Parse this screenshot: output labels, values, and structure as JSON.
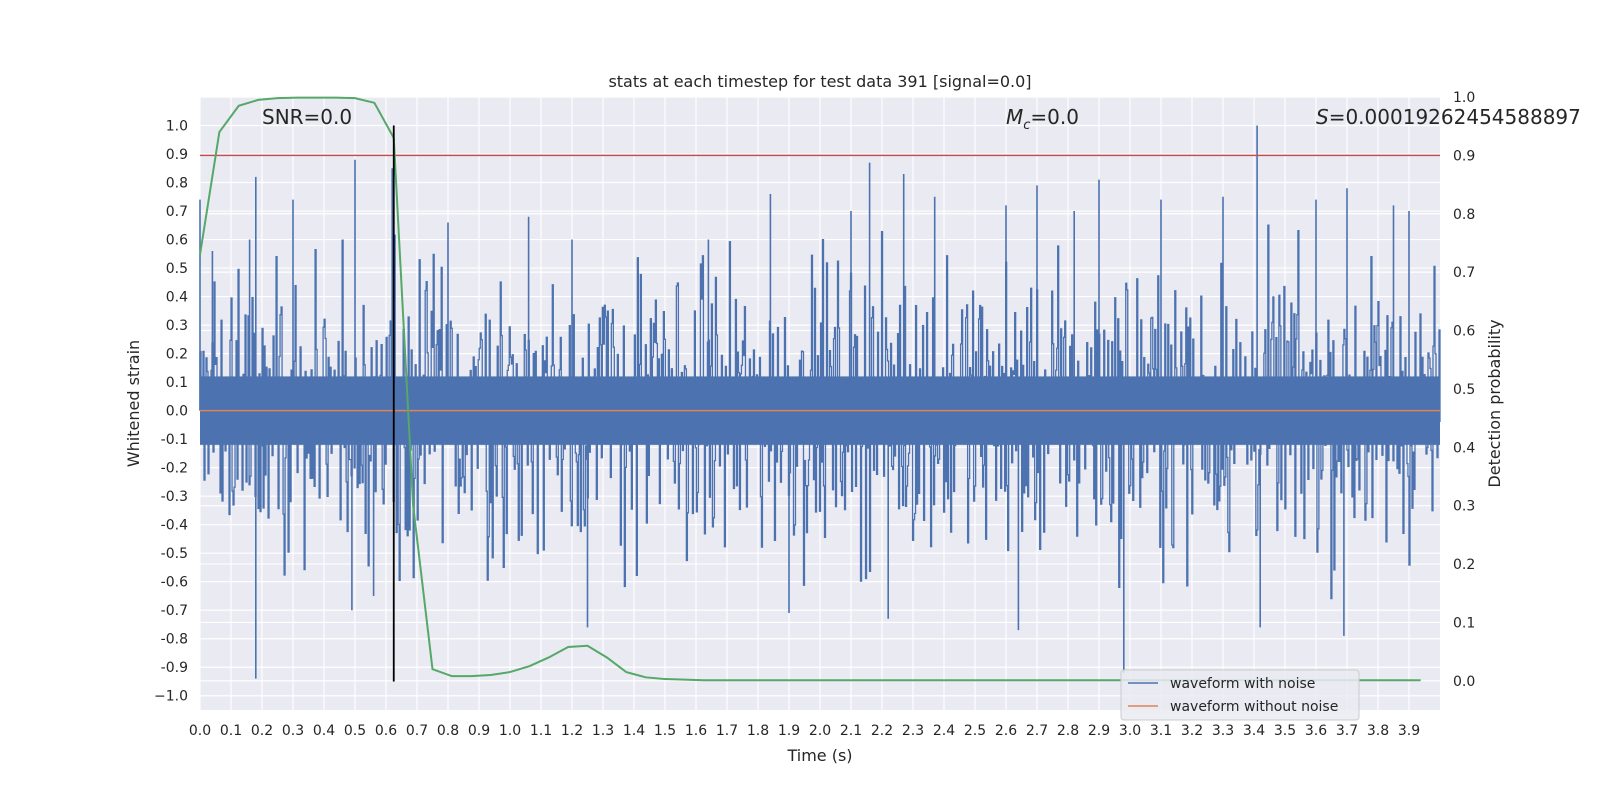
{
  "chart_data": {
    "type": "line",
    "title": "stats at each timestep for test data 391 [signal=0.0]",
    "xlabel": "Time (s)",
    "ylabel": "Whitened strain",
    "y2label": "Detection probability",
    "xlim": [
      0.0,
      4.0
    ],
    "ylim": [
      -1.05,
      1.1
    ],
    "y2lim": [
      -0.05,
      1.0
    ],
    "xticks": [
      "0.0",
      "0.1",
      "0.2",
      "0.3",
      "0.4",
      "0.5",
      "0.6",
      "0.7",
      "0.8",
      "0.9",
      "1.0",
      "1.1",
      "1.2",
      "1.3",
      "1.4",
      "1.5",
      "1.6",
      "1.7",
      "1.8",
      "1.9",
      "2.0",
      "2.1",
      "2.2",
      "2.3",
      "2.4",
      "2.5",
      "2.6",
      "2.7",
      "2.8",
      "2.9",
      "3.0",
      "3.1",
      "3.2",
      "3.3",
      "3.4",
      "3.5",
      "3.6",
      "3.7",
      "3.8",
      "3.9"
    ],
    "yticks": [
      "1.0",
      "0.9",
      "0.8",
      "0.7",
      "0.6",
      "0.5",
      "0.4",
      "0.3",
      "0.2",
      "0.1",
      "0.0",
      "-0.1",
      "-0.2",
      "-0.3",
      "-0.4",
      "-0.5",
      "-0.6",
      "-0.7",
      "-0.8",
      "-0.9",
      "−1.0"
    ],
    "y2ticks": [
      "1.0",
      "0.9",
      "0.8",
      "0.7",
      "0.6",
      "0.5",
      "0.4",
      "0.3",
      "0.2",
      "0.1",
      "0.0"
    ],
    "grid": true,
    "legend_position": "bottom-right",
    "annotations": {
      "snr": "SNR=0.0",
      "mc_symbol": "M",
      "mc_sub": "c",
      "mc_value": "=0.0",
      "s_symbol": "S",
      "s_value": "=0.00019262454588897"
    },
    "threshold_y2": 0.9,
    "marker_x": 0.625,
    "marker_ylim": [
      -0.95,
      1.0
    ],
    "series": [
      {
        "name": "waveform with noise",
        "color": "#4c72b0",
        "kind": "noise",
        "envelope": 0.45,
        "peaks": [
          {
            "x": 0.0,
            "y": 0.74
          },
          {
            "x": 0.04,
            "y": 0.56
          },
          {
            "x": 0.16,
            "y": 0.6
          },
          {
            "x": 0.18,
            "y": 0.82
          },
          {
            "x": 0.18,
            "y": -0.94
          },
          {
            "x": 0.3,
            "y": 0.74
          },
          {
            "x": 0.5,
            "y": 0.88
          },
          {
            "x": 0.49,
            "y": -0.7
          },
          {
            "x": 0.56,
            "y": -0.65
          },
          {
            "x": 0.62,
            "y": 0.85
          },
          {
            "x": 0.8,
            "y": 0.66
          },
          {
            "x": 1.06,
            "y": 0.68
          },
          {
            "x": 1.2,
            "y": 0.6
          },
          {
            "x": 1.25,
            "y": -0.76
          },
          {
            "x": 1.64,
            "y": 0.6
          },
          {
            "x": 1.84,
            "y": 0.76
          },
          {
            "x": 1.9,
            "y": -0.71
          },
          {
            "x": 2.1,
            "y": 0.7
          },
          {
            "x": 2.16,
            "y": 0.87
          },
          {
            "x": 2.22,
            "y": -0.73
          },
          {
            "x": 2.27,
            "y": 0.83
          },
          {
            "x": 2.37,
            "y": 0.75
          },
          {
            "x": 2.6,
            "y": 0.72
          },
          {
            "x": 2.64,
            "y": -0.77
          },
          {
            "x": 2.7,
            "y": 0.79
          },
          {
            "x": 2.82,
            "y": 0.7
          },
          {
            "x": 2.9,
            "y": 0.81
          },
          {
            "x": 2.98,
            "y": -0.92
          },
          {
            "x": 3.1,
            "y": 0.74
          },
          {
            "x": 3.3,
            "y": 0.75
          },
          {
            "x": 3.41,
            "y": 1.0
          },
          {
            "x": 3.42,
            "y": -0.76
          },
          {
            "x": 3.6,
            "y": 0.74
          },
          {
            "x": 3.7,
            "y": 0.78
          },
          {
            "x": 3.69,
            "y": -0.79
          },
          {
            "x": 3.85,
            "y": 0.72
          },
          {
            "x": 3.9,
            "y": 0.7
          }
        ]
      },
      {
        "name": "waveform without noise",
        "color": "#dd8452",
        "x": [
          0.0,
          4.0
        ],
        "y": [
          0.0,
          0.0
        ]
      },
      {
        "name": "",
        "color": "#55a868",
        "axis": "y2",
        "x": [
          0.0,
          0.0625,
          0.125,
          0.1875,
          0.25,
          0.3125,
          0.375,
          0.4375,
          0.5,
          0.5625,
          0.625,
          0.6875,
          0.75,
          0.8125,
          0.875,
          0.9375,
          1.0,
          1.0625,
          1.125,
          1.1875,
          1.25,
          1.3125,
          1.375,
          1.4375,
          1.5,
          1.5625,
          1.625,
          1.6875,
          1.75,
          1.875,
          2.0,
          2.25,
          2.5,
          2.75,
          3.0,
          3.25,
          3.5,
          3.75,
          3.9375
        ],
        "y": [
          0.73,
          0.94,
          0.985,
          0.995,
          0.998,
          0.999,
          0.999,
          0.999,
          0.998,
          0.99,
          0.93,
          0.3,
          0.02,
          0.008,
          0.008,
          0.01,
          0.015,
          0.025,
          0.04,
          0.058,
          0.06,
          0.04,
          0.015,
          0.006,
          0.003,
          0.002,
          0.001,
          0.001,
          0.001,
          0.001,
          0.001,
          0.001,
          0.001,
          0.001,
          0.001,
          0.001,
          0.001,
          0.001,
          0.001
        ]
      }
    ],
    "legend": [
      "waveform with noise",
      "waveform without noise"
    ],
    "colors": {
      "panel": "#eaeaf2",
      "grid": "#ffffff",
      "threshold": "#c44e52",
      "marker": "#000000"
    }
  }
}
